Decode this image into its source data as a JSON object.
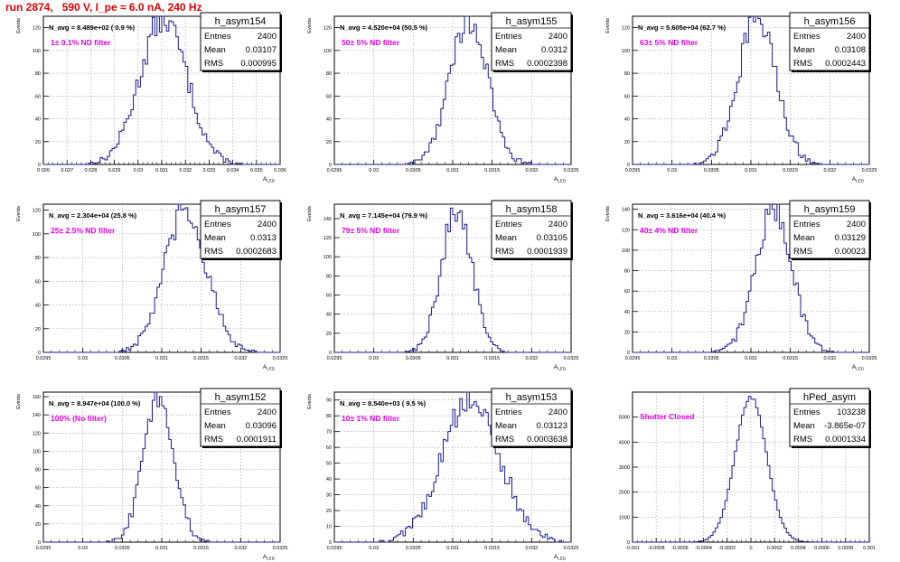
{
  "page": {
    "title": "run 2874,   590 V, I_pe ≈ 6.0 nA, 240 Hz"
  },
  "colors": {
    "histogram": "#1a1a8c",
    "annotation": "#e000e0",
    "title": "#e00000",
    "grid": "#999999"
  },
  "chart_data": [
    {
      "type": "histogram",
      "name": "h_asym154",
      "annotation": "N_avg = 8.489e+02 ( 0.9 %)",
      "filter_label": "1± 0.1% ND filter",
      "stats": {
        "entries": "2400",
        "mean": "0.03107",
        "rms": "0.000995"
      },
      "xlabel": "A_LED",
      "ylabel": "Events",
      "xlim": [
        0.026,
        0.036
      ],
      "ylim": [
        0,
        130
      ],
      "xticks": [
        "0.026",
        "0.027",
        "0.028",
        "0.029",
        "0.03",
        "0.031",
        "0.032",
        "0.033",
        "0.034",
        "0.035",
        "0.036"
      ],
      "yticks": [
        "0",
        "20",
        "40",
        "60",
        "80",
        "100",
        "120"
      ],
      "mean_value": 0.03107,
      "sigma": 0.000995,
      "peak": 128
    },
    {
      "type": "histogram",
      "name": "h_asym155",
      "annotation": "N_avg = 4.520e+04 (50.5 %)",
      "filter_label": "50± 5% ND filter",
      "stats": {
        "entries": "2400",
        "mean": "0.0312",
        "rms": "0.0002398"
      },
      "xlabel": "A_LED",
      "ylabel": "Events",
      "xlim": [
        0.0295,
        0.0325
      ],
      "ylim": [
        0,
        130
      ],
      "xticks": [
        "0.0295",
        "0.03",
        "0.0305",
        "0.031",
        "0.0315",
        "0.032",
        "0.0325"
      ],
      "yticks": [
        "0",
        "20",
        "40",
        "60",
        "80",
        "100",
        "120"
      ],
      "mean_value": 0.0312,
      "sigma": 0.0002398,
      "peak": 127
    },
    {
      "type": "histogram",
      "name": "h_asym156",
      "annotation": "N_avg = 5.605e+04 (62.7 %)",
      "filter_label": "63± 5% ND filter",
      "stats": {
        "entries": "2400",
        "mean": "0.03108",
        "rms": "0.0002443"
      },
      "xlabel": "A_LED",
      "ylabel": "Events",
      "xlim": [
        0.0295,
        0.0325
      ],
      "ylim": [
        0,
        130
      ],
      "xticks": [
        "0.0295",
        "0.03",
        "0.0305",
        "0.031",
        "0.0315",
        "0.032",
        "0.0325"
      ],
      "yticks": [
        "0",
        "20",
        "40",
        "60",
        "80",
        "100",
        "120"
      ],
      "mean_value": 0.03108,
      "sigma": 0.0002443,
      "peak": 128
    },
    {
      "type": "histogram",
      "name": "h_asym157",
      "annotation": "N_avg = 2.304e+04 (25.8 %)",
      "filter_label": "25± 2.5% ND filter",
      "stats": {
        "entries": "2400",
        "mean": "0.0313",
        "rms": "0.0002683"
      },
      "xlabel": "A_LED",
      "ylabel": "Events",
      "xlim": [
        0.0295,
        0.0325
      ],
      "ylim": [
        0,
        125
      ],
      "xticks": [
        "0.0295",
        "0.03",
        "0.0305",
        "0.031",
        "0.0315",
        "0.032",
        "0.0325"
      ],
      "yticks": [
        "0",
        "20",
        "40",
        "60",
        "80",
        "100",
        "120"
      ],
      "mean_value": 0.0313,
      "sigma": 0.0002683,
      "peak": 118
    },
    {
      "type": "histogram",
      "name": "h_asym158",
      "annotation": "N_avg = 7.145e+04 (79.9 %)",
      "filter_label": "79± 5% ND filter",
      "stats": {
        "entries": "2400",
        "mean": "0.03105",
        "rms": "0.0001939"
      },
      "xlabel": "A_LED",
      "ylabel": "Events",
      "xlim": [
        0.0295,
        0.0325
      ],
      "ylim": [
        0,
        155
      ],
      "xticks": [
        "0.0295",
        "0.03",
        "0.0305",
        "0.031",
        "0.0315",
        "0.032",
        "0.0325"
      ],
      "yticks": [
        "0",
        "20",
        "40",
        "60",
        "80",
        "100",
        "120",
        "140"
      ],
      "mean_value": 0.03105,
      "sigma": 0.0001939,
      "peak": 150
    },
    {
      "type": "histogram",
      "name": "h_asym159",
      "annotation": "N_avg = 3.616e+04 (40.4 %)",
      "filter_label": "40± 4% ND filter",
      "stats": {
        "entries": "2400",
        "mean": "0.03129",
        "rms": "0.00023"
      },
      "xlabel": "A_LED",
      "ylabel": "Events",
      "xlim": [
        0.0295,
        0.0325
      ],
      "ylim": [
        0,
        145
      ],
      "xticks": [
        "0.0295",
        "0.03",
        "0.0305",
        "0.031",
        "0.0315",
        "0.032",
        "0.0325"
      ],
      "yticks": [
        "0",
        "20",
        "40",
        "60",
        "80",
        "100",
        "120",
        "140"
      ],
      "mean_value": 0.03129,
      "sigma": 0.00023,
      "peak": 140
    },
    {
      "type": "histogram",
      "name": "h_asym152",
      "annotation": "N_avg = 8.947e+04 (100.0 %)",
      "filter_label": "100% (No filter)",
      "stats": {
        "entries": "2400",
        "mean": "0.03096",
        "rms": "0.0001911"
      },
      "xlabel": "A_LED",
      "ylabel": "Events",
      "xlim": [
        0.0295,
        0.0325
      ],
      "ylim": [
        0,
        165
      ],
      "xticks": [
        "0.0295",
        "0.03",
        "0.0305",
        "0.031",
        "0.0315",
        "0.032",
        "0.0325"
      ],
      "yticks": [
        "0",
        "20",
        "40",
        "60",
        "80",
        "100",
        "120",
        "140",
        "160"
      ],
      "mean_value": 0.03096,
      "sigma": 0.0001911,
      "peak": 160
    },
    {
      "type": "histogram",
      "name": "h_asym153",
      "annotation": "N_avg = 8.540e+03 ( 9.5 %)",
      "filter_label": "10± 1% ND filter",
      "stats": {
        "entries": "2400",
        "mean": "0.03123",
        "rms": "0.0003638"
      },
      "xlabel": "A_LED",
      "ylabel": "Events",
      "xlim": [
        0.0295,
        0.0325
      ],
      "ylim": [
        0,
        95
      ],
      "xticks": [
        "0.0295",
        "0.03",
        "0.0305",
        "0.031",
        "0.0315",
        "0.032",
        "0.0325"
      ],
      "yticks": [
        "0",
        "10",
        "20",
        "30",
        "40",
        "50",
        "60",
        "70",
        "80",
        "90"
      ],
      "mean_value": 0.03123,
      "sigma": 0.0003638,
      "peak": 90
    },
    {
      "type": "histogram",
      "name": "hPed_asym",
      "annotation": "",
      "filter_label": "Shutter Closed",
      "stats": {
        "entries": "103238",
        "mean": "-3.865e-07",
        "rms": "0.0001334"
      },
      "xlabel": "",
      "ylabel": "",
      "xlim": [
        -0.001,
        0.001
      ],
      "ylim": [
        0,
        6000
      ],
      "xticks": [
        "-0.001",
        "-0.0008",
        "-0.0006",
        "-0.0004",
        "-0.0002",
        "0",
        "0.0002",
        "0.0004",
        "0.0006",
        "0.0008",
        "0.001"
      ],
      "yticks": [
        "0",
        "1000",
        "2000",
        "3000",
        "4000",
        "5000"
      ],
      "mean_value": -3.86e-07,
      "sigma": 0.0001334,
      "peak": 5800
    }
  ]
}
